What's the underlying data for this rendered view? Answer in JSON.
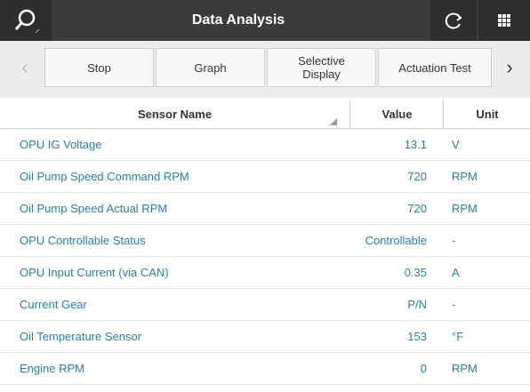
{
  "header": {
    "title": "Data Analysis"
  },
  "toolbar": {
    "buttons": [
      "Stop",
      "Graph",
      "Selective Display",
      "Actuation Test"
    ]
  },
  "table": {
    "columns": [
      "Sensor Name",
      "Value",
      "Unit"
    ],
    "rows": [
      [
        "OPU IG Voltage",
        "13.1",
        "V"
      ],
      [
        "Oil Pump Speed Command RPM",
        "720",
        "RPM"
      ],
      [
        "Oil Pump Speed Actual RPM",
        "720",
        "RPM"
      ],
      [
        "OPU Controllable Status",
        "Controllable",
        "-"
      ],
      [
        "OPU Input Current (via CAN)",
        "0.35",
        "A"
      ],
      [
        "Current Gear",
        "P/N",
        "-"
      ],
      [
        "Oil Temperature Sensor",
        "153",
        "°F"
      ],
      [
        "Engine RPM",
        "0",
        "RPM"
      ]
    ]
  }
}
